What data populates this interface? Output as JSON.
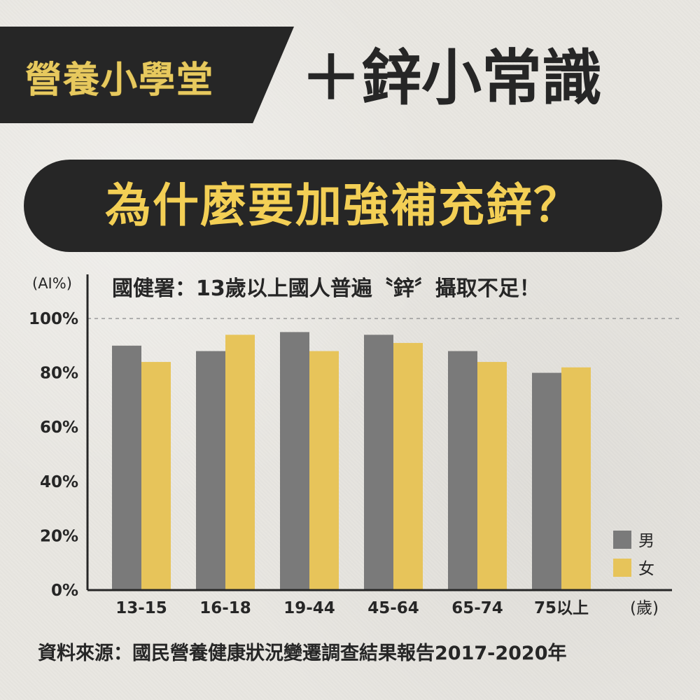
{
  "header": {
    "badge": "營養小學堂",
    "title": "＋鋅小常識",
    "question": "為什麼要加強補充鋅？"
  },
  "chart_data": {
    "type": "bar",
    "title": "國健署：13歲以上國人普遍〝鋅〞攝取不足！",
    "ylabel": "(AI%)",
    "xlabel": "(歲)",
    "ylim": [
      0,
      100
    ],
    "yticks": [
      "0%",
      "20%",
      "40%",
      "60%",
      "80%",
      "100%"
    ],
    "reference_line": 100,
    "categories": [
      "13-15",
      "16-18",
      "19-44",
      "45-64",
      "65-74",
      "75以上"
    ],
    "series": [
      {
        "name": "男",
        "values": [
          90,
          88,
          95,
          94,
          88,
          80
        ]
      },
      {
        "name": "女",
        "values": [
          84,
          94,
          88,
          91,
          84,
          82
        ]
      }
    ],
    "legend": "bottom-right",
    "grid": false
  },
  "colors": {
    "male": "#7a7a7a",
    "female": "#e7c45a",
    "dark": "#262626",
    "gold_text": "#e7c95e",
    "pill_text": "#f3cf55"
  },
  "footer": {
    "source": "資料來源：國民營養健康狀況變遷調查結果報告2017-2020年"
  }
}
